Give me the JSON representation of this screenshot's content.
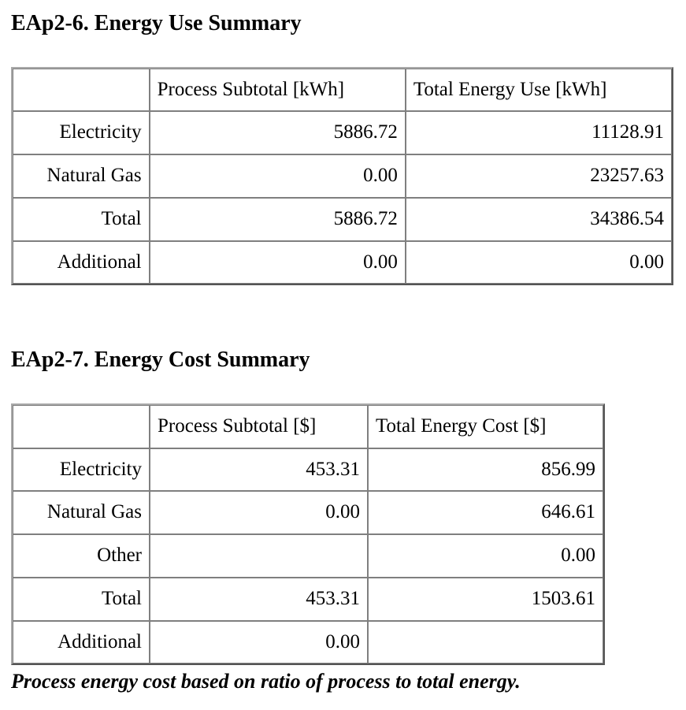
{
  "page": {
    "colors": {
      "background": "#ffffff",
      "text": "#000000",
      "table_frame_border": "#a9a9a9",
      "cell_border": "#7f7f7f"
    }
  },
  "sections": [
    {
      "id": "energy-use-summary",
      "title": "EAp2-6. Energy Use Summary",
      "table": {
        "columns": [
          "",
          "Process Subtotal [kWh]",
          "Total Energy Use [kWh]"
        ],
        "rows": [
          {
            "label": "Electricity",
            "values": [
              "5886.72",
              "11128.91"
            ]
          },
          {
            "label": "Natural Gas",
            "values": [
              "0.00",
              "23257.63"
            ]
          },
          {
            "label": "Total",
            "values": [
              "5886.72",
              "34386.54"
            ]
          },
          {
            "label": "Additional",
            "values": [
              "0.00",
              "0.00"
            ]
          }
        ]
      }
    },
    {
      "id": "energy-cost-summary",
      "title": "EAp2-7. Energy Cost Summary",
      "table": {
        "columns": [
          "",
          "Process Subtotal [$]",
          "Total Energy Cost [$]"
        ],
        "rows": [
          {
            "label": "Electricity",
            "values": [
              "453.31",
              "856.99"
            ]
          },
          {
            "label": "Natural Gas",
            "values": [
              "0.00",
              "646.61"
            ]
          },
          {
            "label": "Other",
            "values": [
              "",
              "0.00"
            ]
          },
          {
            "label": "Total",
            "values": [
              "453.31",
              "1503.61"
            ]
          },
          {
            "label": "Additional",
            "values": [
              "0.00",
              ""
            ]
          }
        ]
      },
      "footnote": "Process energy cost based on ratio of process to total energy."
    }
  ]
}
